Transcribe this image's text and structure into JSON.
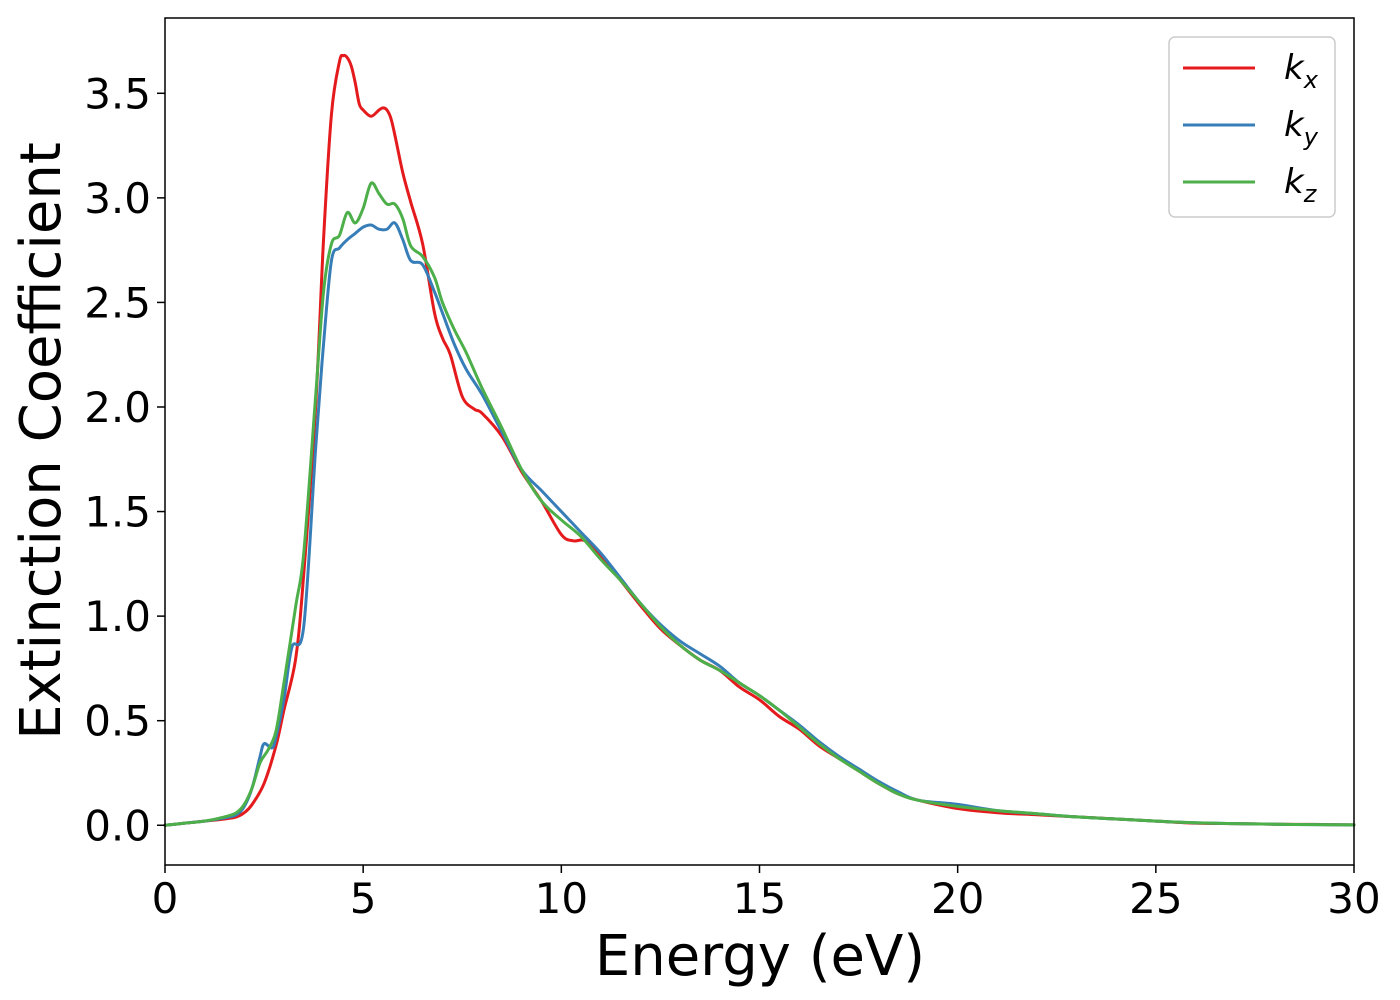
{
  "chart_data": {
    "type": "line",
    "xlabel": "Energy (eV)",
    "ylabel": "Extinction Coefficient",
    "xlim": [
      0,
      30
    ],
    "ylim": [
      -0.19,
      3.86
    ],
    "xticks": [
      0,
      5,
      10,
      15,
      20,
      25,
      30
    ],
    "yticks": [
      0.0,
      0.5,
      1.0,
      1.5,
      2.0,
      2.5,
      3.0,
      3.5
    ],
    "grid": false,
    "legend_position": "top-right",
    "series": [
      {
        "name": "k_x",
        "label_main": "k",
        "label_sub": "x",
        "color": "#e41a1c",
        "x": [
          0,
          0.5,
          1,
          1.5,
          1.8,
          2.0,
          2.2,
          2.5,
          2.8,
          3.0,
          3.3,
          3.5,
          3.8,
          4.0,
          4.2,
          4.4,
          4.5,
          4.6,
          4.7,
          4.8,
          4.9,
          5.0,
          5.2,
          5.4,
          5.5,
          5.6,
          5.7,
          5.8,
          6.0,
          6.2,
          6.5,
          6.8,
          7.0,
          7.2,
          7.5,
          7.8,
          8.0,
          8.5,
          9.0,
          9.5,
          10.0,
          10.3,
          10.6,
          11.0,
          11.5,
          12.0,
          12.5,
          13.0,
          13.5,
          14.0,
          14.5,
          15.0,
          15.5,
          16.0,
          16.5,
          17.0,
          17.5,
          18.0,
          18.5,
          19.0,
          20.0,
          21.0,
          22.0,
          23.0,
          24.0,
          25.0,
          26.0,
          27.0,
          28.0,
          29.0,
          30.0
        ],
        "values": [
          0.0,
          0.01,
          0.02,
          0.03,
          0.04,
          0.06,
          0.1,
          0.2,
          0.38,
          0.55,
          0.8,
          1.2,
          2.0,
          2.8,
          3.4,
          3.65,
          3.68,
          3.67,
          3.63,
          3.55,
          3.45,
          3.42,
          3.39,
          3.42,
          3.43,
          3.42,
          3.38,
          3.3,
          3.12,
          2.98,
          2.78,
          2.45,
          2.33,
          2.25,
          2.05,
          1.99,
          1.97,
          1.86,
          1.69,
          1.55,
          1.39,
          1.36,
          1.36,
          1.29,
          1.17,
          1.05,
          0.94,
          0.86,
          0.79,
          0.74,
          0.66,
          0.6,
          0.52,
          0.46,
          0.38,
          0.32,
          0.26,
          0.2,
          0.15,
          0.12,
          0.08,
          0.06,
          0.05,
          0.04,
          0.03,
          0.02,
          0.01,
          0.008,
          0.005,
          0.004,
          0.002
        ]
      },
      {
        "name": "k_y",
        "label_main": "k",
        "label_sub": "y",
        "color": "#377eb8",
        "x": [
          0,
          0.5,
          1,
          1.5,
          1.8,
          2.0,
          2.2,
          2.4,
          2.5,
          2.7,
          2.8,
          3.0,
          3.2,
          3.5,
          3.8,
          4.0,
          4.2,
          4.4,
          4.6,
          4.8,
          5.0,
          5.2,
          5.4,
          5.6,
          5.8,
          6.0,
          6.2,
          6.5,
          6.8,
          7.0,
          7.3,
          7.6,
          8.0,
          8.5,
          9.0,
          9.5,
          10.0,
          10.5,
          11.0,
          11.5,
          12.0,
          12.5,
          13.0,
          13.5,
          14.0,
          14.5,
          15.0,
          15.5,
          16.0,
          16.5,
          17.0,
          17.5,
          18.0,
          18.5,
          19.0,
          20.0,
          21.0,
          22.0,
          23.0,
          24.0,
          25.0,
          26.0,
          27.0,
          28.0,
          29.0,
          30.0
        ],
        "values": [
          0.0,
          0.01,
          0.02,
          0.035,
          0.05,
          0.09,
          0.18,
          0.33,
          0.39,
          0.37,
          0.42,
          0.6,
          0.85,
          0.95,
          1.8,
          2.3,
          2.7,
          2.76,
          2.8,
          2.83,
          2.86,
          2.87,
          2.85,
          2.85,
          2.88,
          2.8,
          2.7,
          2.68,
          2.55,
          2.45,
          2.3,
          2.18,
          2.06,
          1.88,
          1.7,
          1.6,
          1.5,
          1.4,
          1.3,
          1.18,
          1.06,
          0.96,
          0.88,
          0.82,
          0.76,
          0.68,
          0.62,
          0.55,
          0.48,
          0.4,
          0.33,
          0.27,
          0.21,
          0.16,
          0.12,
          0.1,
          0.07,
          0.055,
          0.04,
          0.03,
          0.02,
          0.012,
          0.008,
          0.005,
          0.003,
          0.002
        ]
      },
      {
        "name": "k_z",
        "label_main": "k",
        "label_sub": "z",
        "color": "#4daf4a",
        "x": [
          0,
          0.5,
          1,
          1.5,
          1.8,
          2.0,
          2.2,
          2.4,
          2.6,
          2.8,
          3.0,
          3.3,
          3.5,
          3.8,
          4.0,
          4.2,
          4.4,
          4.6,
          4.8,
          5.0,
          5.2,
          5.4,
          5.6,
          5.8,
          6.0,
          6.2,
          6.5,
          6.8,
          7.0,
          7.3,
          7.6,
          8.0,
          8.5,
          9.0,
          9.5,
          10.0,
          10.5,
          11.0,
          11.5,
          12.0,
          12.5,
          13.0,
          13.5,
          14.0,
          14.5,
          15.0,
          15.5,
          16.0,
          16.5,
          17.0,
          17.5,
          18.0,
          18.5,
          19.0,
          20.0,
          21.0,
          22.0,
          23.0,
          24.0,
          25.0,
          26.0,
          27.0,
          28.0,
          29.0,
          30.0
        ],
        "values": [
          0.0,
          0.01,
          0.02,
          0.04,
          0.06,
          0.1,
          0.18,
          0.3,
          0.36,
          0.45,
          0.68,
          1.05,
          1.3,
          2.05,
          2.55,
          2.78,
          2.82,
          2.93,
          2.88,
          2.95,
          3.07,
          3.02,
          2.97,
          2.97,
          2.9,
          2.77,
          2.72,
          2.62,
          2.5,
          2.37,
          2.26,
          2.09,
          1.9,
          1.7,
          1.55,
          1.46,
          1.38,
          1.27,
          1.17,
          1.06,
          0.95,
          0.86,
          0.79,
          0.74,
          0.68,
          0.62,
          0.55,
          0.47,
          0.39,
          0.32,
          0.26,
          0.2,
          0.15,
          0.12,
          0.09,
          0.07,
          0.055,
          0.04,
          0.03,
          0.02,
          0.012,
          0.008,
          0.005,
          0.003,
          0.002
        ]
      }
    ]
  }
}
